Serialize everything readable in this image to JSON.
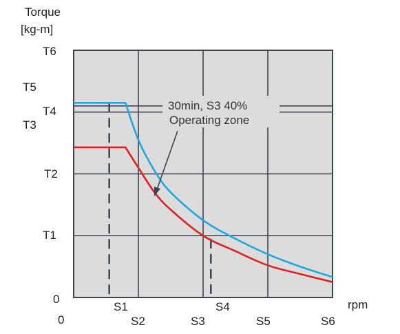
{
  "chart_data": {
    "type": "line",
    "ylabel_line1": "Torque",
    "ylabel_line2": "[kg-m]",
    "xlabel": "rpm",
    "x_origin_label": "0",
    "y_origin_label": "0",
    "x_ticks": [
      "S1",
      "S2",
      "S3",
      "S4",
      "S5",
      "S6"
    ],
    "y_ticks": [
      "T1",
      "T2",
      "T3",
      "T4",
      "T5",
      "T6"
    ],
    "annotation_line1": "30min, S3 40%",
    "annotation_line2": "Operating zone",
    "grid": true,
    "ylim": [
      0,
      4
    ],
    "xlim": [
      0,
      4
    ],
    "series": [
      {
        "color": "#1ea8e0",
        "points": [
          [
            0,
            3.15
          ],
          [
            0.8,
            3.15
          ],
          [
            1.0,
            2.55
          ],
          [
            1.25,
            2.05
          ],
          [
            1.5,
            1.7
          ],
          [
            2.0,
            1.25
          ],
          [
            2.5,
            0.95
          ],
          [
            3.0,
            0.7
          ],
          [
            3.5,
            0.5
          ],
          [
            4.0,
            0.33
          ]
        ]
      },
      {
        "color": "#e02020",
        "points": [
          [
            0,
            2.43
          ],
          [
            0.8,
            2.43
          ],
          [
            1.0,
            2.1
          ],
          [
            1.25,
            1.7
          ],
          [
            1.5,
            1.42
          ],
          [
            2.0,
            1.0
          ],
          [
            2.5,
            0.75
          ],
          [
            3.0,
            0.52
          ],
          [
            3.5,
            0.38
          ],
          [
            4.0,
            0.25
          ]
        ]
      }
    ],
    "dashed_markers_x": [
      0.55,
      2.12
    ],
    "colors": {
      "background": "#dcdcdc",
      "grid": "#3a4450",
      "axis": "#3a4450"
    }
  }
}
